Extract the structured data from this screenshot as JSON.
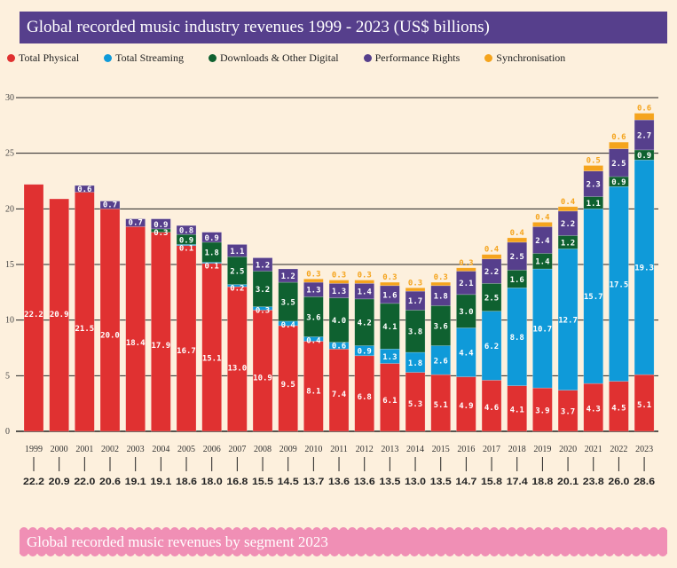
{
  "header": {
    "title": "Global recorded music industry revenues 1999 - 2023 (US$ billions)"
  },
  "legend": [
    {
      "label": "Total Physical",
      "color": "#e03131"
    },
    {
      "label": "Total Streaming",
      "color": "#0f9ad9"
    },
    {
      "label": "Downloads & Other Digital",
      "color": "#0f6130"
    },
    {
      "label": "Performance Rights",
      "color": "#563f8c"
    },
    {
      "label": "Synchronisation",
      "color": "#f5a41d"
    }
  ],
  "footer": {
    "title": "Global recorded music revenues by segment 2023"
  },
  "chart_data": {
    "type": "bar",
    "stacked": true,
    "title": "Global recorded music industry revenues 1999 - 2023 (US$ billions)",
    "xlabel": "",
    "ylabel": "",
    "ylim": [
      0,
      30
    ],
    "yticks": [
      0,
      5,
      10,
      15,
      20,
      25,
      30
    ],
    "grid": true,
    "legend_position": "top-left",
    "categories": [
      "1999",
      "2000",
      "2001",
      "2002",
      "2003",
      "2004",
      "2005",
      "2006",
      "2007",
      "2008",
      "2009",
      "2010",
      "2011",
      "2012",
      "2013",
      "2014",
      "2015",
      "2016",
      "2017",
      "2018",
      "2019",
      "2020",
      "2021",
      "2022",
      "2023"
    ],
    "series": [
      {
        "name": "Total Physical",
        "color": "#e03131",
        "values": [
          22.2,
          20.9,
          21.5,
          20.0,
          18.4,
          17.9,
          16.7,
          15.1,
          13.0,
          10.9,
          9.5,
          8.1,
          7.4,
          6.8,
          6.1,
          5.3,
          5.1,
          4.9,
          4.6,
          4.1,
          3.9,
          3.7,
          4.3,
          4.5,
          5.1
        ]
      },
      {
        "name": "Total Streaming",
        "color": "#0f9ad9",
        "values": [
          null,
          null,
          null,
          null,
          null,
          null,
          0.1,
          0.1,
          0.2,
          0.3,
          0.4,
          0.4,
          0.6,
          0.9,
          1.3,
          1.8,
          2.6,
          4.4,
          6.2,
          8.8,
          10.7,
          12.7,
          15.7,
          17.5,
          19.3
        ]
      },
      {
        "name": "Downloads & Other Digital",
        "color": "#0f6130",
        "values": [
          null,
          null,
          null,
          null,
          null,
          0.3,
          0.9,
          1.8,
          2.5,
          3.2,
          3.5,
          3.6,
          4.0,
          4.2,
          4.1,
          3.8,
          3.6,
          3.0,
          2.5,
          1.6,
          1.4,
          1.2,
          1.1,
          0.9,
          0.9
        ]
      },
      {
        "name": "Performance Rights",
        "color": "#563f8c",
        "values": [
          null,
          null,
          0.6,
          0.7,
          0.7,
          0.9,
          0.8,
          0.9,
          1.1,
          1.2,
          1.2,
          1.3,
          1.3,
          1.4,
          1.6,
          1.7,
          1.8,
          2.1,
          2.2,
          2.5,
          2.4,
          2.2,
          2.3,
          2.5,
          2.7
        ]
      },
      {
        "name": "Synchronisation",
        "color": "#f5a41d",
        "values": [
          null,
          null,
          null,
          null,
          null,
          null,
          null,
          null,
          null,
          null,
          null,
          0.3,
          0.3,
          0.3,
          0.3,
          0.3,
          0.3,
          0.3,
          0.4,
          0.4,
          0.4,
          0.4,
          0.5,
          0.6,
          0.6
        ]
      }
    ],
    "totals": [
      "22.2",
      "20.9",
      "22.0",
      "20.6",
      "19.1",
      "19.1",
      "18.6",
      "18.0",
      "16.8",
      "15.5",
      "14.5",
      "13.7",
      "13.6",
      "13.6",
      "13.5",
      "13.0",
      "13.5",
      "14.7",
      "15.8",
      "17.4",
      "18.8",
      "20.1",
      "23.8",
      "26.0",
      "28.6"
    ]
  }
}
